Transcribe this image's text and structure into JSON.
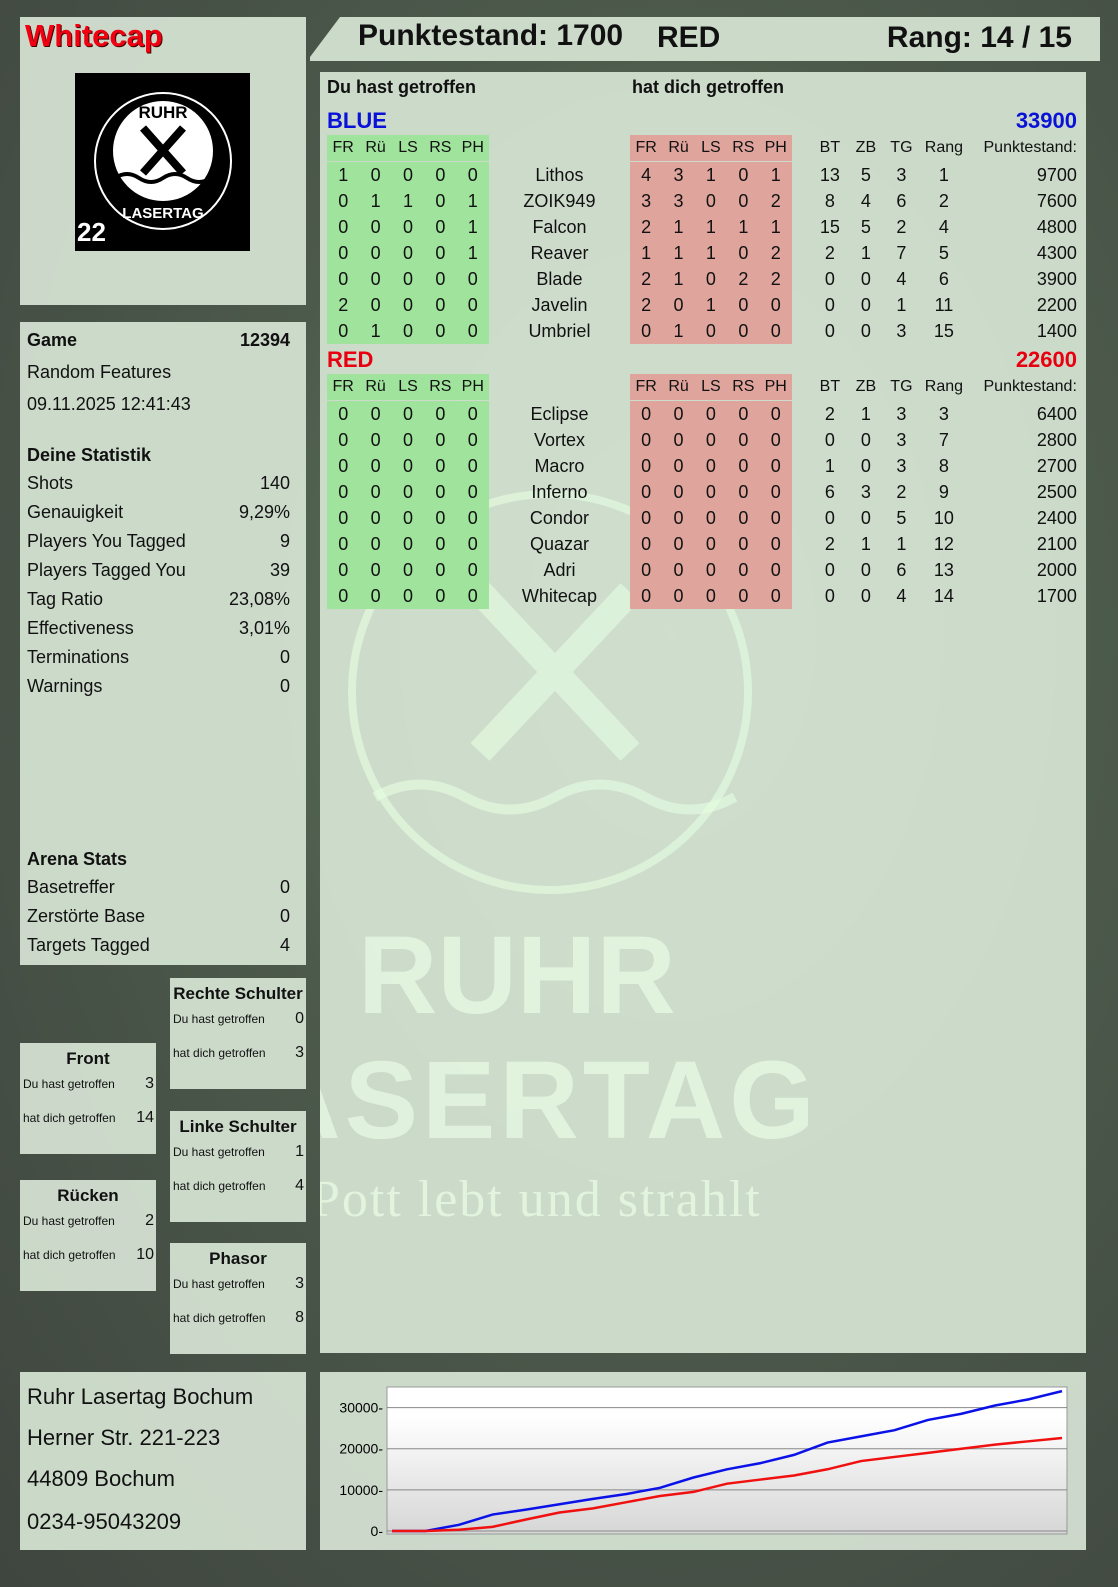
{
  "player": {
    "name": "Whitecap",
    "logo_text": "RUHR LASERTAG",
    "logo_number": "22"
  },
  "header": {
    "score": "Punktestand: 1700",
    "team": "RED",
    "rank": "Rang: 14 / 15"
  },
  "main": {
    "you_hit": "Du hast getroffen",
    "hit_you": "hat dich getroffen",
    "columns_hits": [
      "FR",
      "Rü",
      "LS",
      "RS",
      "PH"
    ],
    "columns_stats": [
      "BT",
      "ZB",
      "TG",
      "Rang",
      "Punktestand:"
    ],
    "watermark": {
      "line1": "RUHR",
      "line2": "LASERTAG",
      "slogan": "Der Pott lebt und strahlt"
    },
    "teams": [
      {
        "name": "BLUE",
        "score": "33900",
        "color": "#0a12d8",
        "players": [
          {
            "you_hit": [
              1,
              0,
              0,
              0,
              0
            ],
            "name": "Lithos",
            "hit_you": [
              4,
              3,
              1,
              0,
              1
            ],
            "bt": 13,
            "zb": 5,
            "tg": 3,
            "rang": 1,
            "points": 9700
          },
          {
            "you_hit": [
              0,
              1,
              1,
              0,
              1
            ],
            "name": "ZOIK949",
            "hit_you": [
              3,
              3,
              0,
              0,
              2
            ],
            "bt": 8,
            "zb": 4,
            "tg": 6,
            "rang": 2,
            "points": 7600
          },
          {
            "you_hit": [
              0,
              0,
              0,
              0,
              1
            ],
            "name": "Falcon",
            "hit_you": [
              2,
              1,
              1,
              1,
              1
            ],
            "bt": 15,
            "zb": 5,
            "tg": 2,
            "rang": 4,
            "points": 4800
          },
          {
            "you_hit": [
              0,
              0,
              0,
              0,
              1
            ],
            "name": "Reaver",
            "hit_you": [
              1,
              1,
              1,
              0,
              2
            ],
            "bt": 2,
            "zb": 1,
            "tg": 7,
            "rang": 5,
            "points": 4300
          },
          {
            "you_hit": [
              0,
              0,
              0,
              0,
              0
            ],
            "name": "Blade",
            "hit_you": [
              2,
              1,
              0,
              2,
              2
            ],
            "bt": 0,
            "zb": 0,
            "tg": 4,
            "rang": 6,
            "points": 3900
          },
          {
            "you_hit": [
              2,
              0,
              0,
              0,
              0
            ],
            "name": "Javelin",
            "hit_you": [
              2,
              0,
              1,
              0,
              0
            ],
            "bt": 0,
            "zb": 0,
            "tg": 1,
            "rang": 11,
            "points": 2200
          },
          {
            "you_hit": [
              0,
              1,
              0,
              0,
              0
            ],
            "name": "Umbriel",
            "hit_you": [
              0,
              1,
              0,
              0,
              0
            ],
            "bt": 0,
            "zb": 0,
            "tg": 3,
            "rang": 15,
            "points": 1400
          }
        ]
      },
      {
        "name": "RED",
        "score": "22600",
        "color": "#e80010",
        "players": [
          {
            "you_hit": [
              0,
              0,
              0,
              0,
              0
            ],
            "name": "Eclipse",
            "hit_you": [
              0,
              0,
              0,
              0,
              0
            ],
            "bt": 2,
            "zb": 1,
            "tg": 3,
            "rang": 3,
            "points": 6400
          },
          {
            "you_hit": [
              0,
              0,
              0,
              0,
              0
            ],
            "name": "Vortex",
            "hit_you": [
              0,
              0,
              0,
              0,
              0
            ],
            "bt": 0,
            "zb": 0,
            "tg": 3,
            "rang": 7,
            "points": 2800
          },
          {
            "you_hit": [
              0,
              0,
              0,
              0,
              0
            ],
            "name": "Macro",
            "hit_you": [
              0,
              0,
              0,
              0,
              0
            ],
            "bt": 1,
            "zb": 0,
            "tg": 3,
            "rang": 8,
            "points": 2700
          },
          {
            "you_hit": [
              0,
              0,
              0,
              0,
              0
            ],
            "name": "Inferno",
            "hit_you": [
              0,
              0,
              0,
              0,
              0
            ],
            "bt": 6,
            "zb": 3,
            "tg": 2,
            "rang": 9,
            "points": 2500
          },
          {
            "you_hit": [
              0,
              0,
              0,
              0,
              0
            ],
            "name": "Condor",
            "hit_you": [
              0,
              0,
              0,
              0,
              0
            ],
            "bt": 0,
            "zb": 0,
            "tg": 5,
            "rang": 10,
            "points": 2400
          },
          {
            "you_hit": [
              0,
              0,
              0,
              0,
              0
            ],
            "name": "Quazar",
            "hit_you": [
              0,
              0,
              0,
              0,
              0
            ],
            "bt": 2,
            "zb": 1,
            "tg": 1,
            "rang": 12,
            "points": 2100
          },
          {
            "you_hit": [
              0,
              0,
              0,
              0,
              0
            ],
            "name": "Adri",
            "hit_you": [
              0,
              0,
              0,
              0,
              0
            ],
            "bt": 0,
            "zb": 0,
            "tg": 6,
            "rang": 13,
            "points": 2000
          },
          {
            "you_hit": [
              0,
              0,
              0,
              0,
              0
            ],
            "name": "Whitecap",
            "hit_you": [
              0,
              0,
              0,
              0,
              0
            ],
            "bt": 0,
            "zb": 0,
            "tg": 4,
            "rang": 14,
            "points": 1700
          }
        ]
      }
    ]
  },
  "game": {
    "label": "Game",
    "id": "12394",
    "mode": "Random Features",
    "datetime": "09.11.2025 12:41:43"
  },
  "stats": {
    "title": "Deine Statistik",
    "items": [
      {
        "label": "Shots",
        "value": "140"
      },
      {
        "label": "Genauigkeit",
        "value": "9,29%"
      },
      {
        "label": "Players You Tagged",
        "value": "9"
      },
      {
        "label": "Players Tagged You",
        "value": "39"
      },
      {
        "label": "Tag Ratio",
        "value": "23,08%"
      },
      {
        "label": "Effectiveness",
        "value": "3,01%"
      },
      {
        "label": "Terminations",
        "value": "0"
      },
      {
        "label": "Warnings",
        "value": "0"
      }
    ]
  },
  "arena": {
    "title": "Arena Stats",
    "items": [
      {
        "label": "Basetreffer",
        "value": "0"
      },
      {
        "label": "Zerstörte Base",
        "value": "0"
      },
      {
        "label": "Targets Tagged",
        "value": "4"
      }
    ]
  },
  "body_parts": [
    {
      "name": "Front",
      "you_hit_label": "Du hast getroffen",
      "you_hit": "3",
      "hit_you_label": "hat dich getroffen",
      "hit_you": "14"
    },
    {
      "name": "Rücken",
      "you_hit_label": "Du hast getroffen",
      "you_hit": "2",
      "hit_you_label": "hat dich getroffen",
      "hit_you": "10"
    },
    {
      "name": "Rechte Schulter",
      "you_hit_label": "Du hast getroffen",
      "you_hit": "0",
      "hit_you_label": "hat dich getroffen",
      "hit_you": "3"
    },
    {
      "name": "Linke Schulter",
      "you_hit_label": "Du hast getroffen",
      "you_hit": "1",
      "hit_you_label": "hat dich getroffen",
      "hit_you": "4"
    },
    {
      "name": "Phasor",
      "you_hit_label": "Du hast getroffen",
      "you_hit": "3",
      "hit_you_label": "hat dich getroffen",
      "hit_you": "8"
    }
  ],
  "address": {
    "name": "Ruhr Lasertag Bochum",
    "street": "Herner Str. 221-223",
    "city": "44809 Bochum",
    "phone": "0234-95043209"
  },
  "chart_data": {
    "type": "line",
    "title": "",
    "xlabel": "",
    "ylabel": "",
    "ylim": [
      0,
      35000
    ],
    "yticks": [
      0,
      10000,
      20000,
      30000
    ],
    "grid": true,
    "x": [
      0,
      1,
      2,
      3,
      4,
      5,
      6,
      7,
      8,
      9,
      10,
      11,
      12,
      13,
      14,
      15,
      16,
      17,
      18,
      19,
      20
    ],
    "series": [
      {
        "color": "#0a12e8",
        "values": [
          0,
          0,
          1500,
          4000,
          5200,
          6500,
          7800,
          9000,
          10500,
          13000,
          15000,
          16500,
          18500,
          21500,
          23000,
          24500,
          27000,
          28500,
          30500,
          32000,
          34000
        ]
      },
      {
        "color": "#f01010",
        "values": [
          0,
          0,
          300,
          1000,
          2800,
          4500,
          5500,
          7000,
          8500,
          9500,
          11500,
          12500,
          13500,
          15000,
          17000,
          18000,
          19000,
          20000,
          21000,
          21800,
          22600
        ]
      }
    ]
  }
}
